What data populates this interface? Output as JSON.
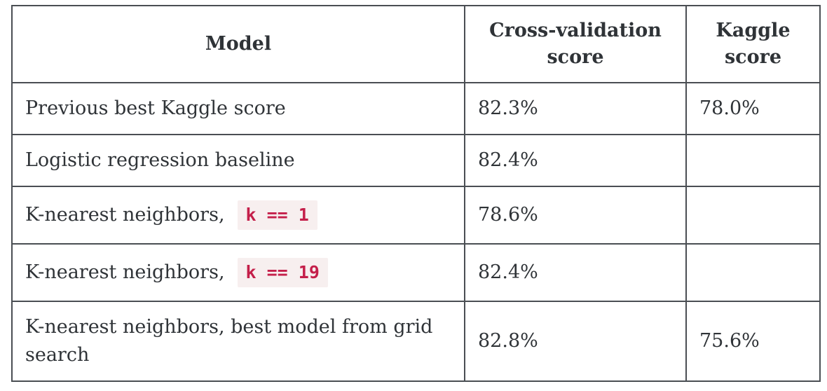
{
  "table": {
    "headers": [
      "Model",
      "Cross-validation score",
      "Kaggle score"
    ],
    "rows": [
      {
        "model": "Previous best Kaggle score",
        "code": "",
        "cv": "82.3%",
        "kaggle": "78.0%"
      },
      {
        "model": "Logistic regression baseline",
        "code": "",
        "cv": "82.4%",
        "kaggle": ""
      },
      {
        "model": "K-nearest neighbors,",
        "code": "k == 1",
        "cv": "78.6%",
        "kaggle": ""
      },
      {
        "model": "K-nearest neighbors,",
        "code": "k == 19",
        "cv": "82.4%",
        "kaggle": ""
      },
      {
        "model": "K-nearest neighbors, best model from grid search",
        "code": "",
        "cv": "82.8%",
        "kaggle": "75.6%"
      }
    ]
  }
}
